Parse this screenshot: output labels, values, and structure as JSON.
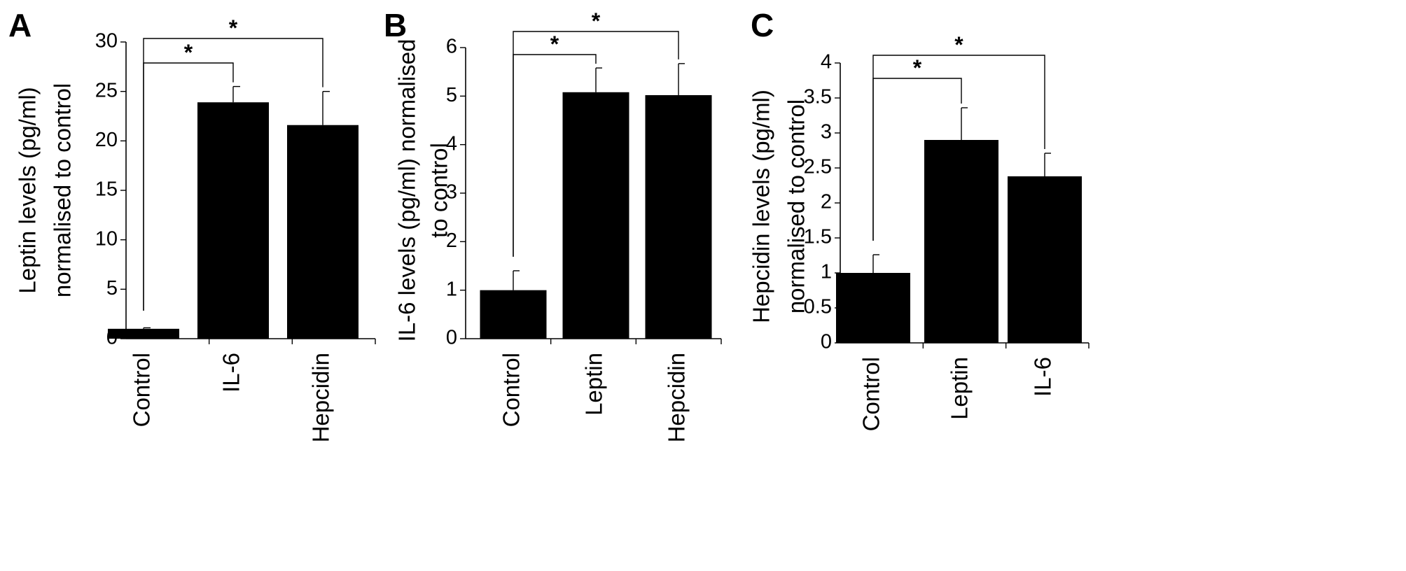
{
  "chart_data": [
    {
      "panel": "A",
      "type": "bar",
      "ylabel_lines": [
        "Leptin levels (pg/ml)",
        "normalised to control"
      ],
      "categories": [
        "Control",
        "IL-6",
        "Hepcidin"
      ],
      "values": [
        1.0,
        23.9,
        21.6
      ],
      "error": [
        0.1,
        1.6,
        3.4
      ],
      "ylim": [
        0,
        30
      ],
      "yticks": [
        0,
        5,
        10,
        15,
        20,
        25,
        30
      ],
      "ytick_labels": [
        "0",
        "5",
        "10",
        "15",
        "20",
        "25",
        "30"
      ],
      "significance": [
        {
          "from": "Control",
          "to": "IL-6",
          "label": "*"
        },
        {
          "from": "Control",
          "to": "Hepcidin",
          "label": "*"
        }
      ],
      "bar_color": "#000000",
      "grid": false
    },
    {
      "panel": "B",
      "type": "bar",
      "ylabel_lines": [
        "IL-6 levels (pg/ml) normalised",
        "to control"
      ],
      "categories": [
        "Control",
        "Leptin",
        "Hepcidin"
      ],
      "values": [
        1.0,
        5.08,
        5.02
      ],
      "error": [
        0.4,
        0.5,
        0.65
      ],
      "ylim": [
        0,
        6
      ],
      "yticks": [
        0,
        1,
        2,
        3,
        4,
        5,
        6
      ],
      "ytick_labels": [
        "0",
        "1",
        "2",
        "3",
        "4",
        "5",
        "6"
      ],
      "significance": [
        {
          "from": "Control",
          "to": "Leptin",
          "label": "*"
        },
        {
          "from": "Control",
          "to": "Hepcidin",
          "label": "*"
        }
      ],
      "bar_color": "#000000",
      "grid": false
    },
    {
      "panel": "C",
      "type": "bar",
      "ylabel_lines": [
        "Hepcidin levels (pg/ml)",
        "normalised to control"
      ],
      "categories": [
        "Control",
        "Leptin",
        "IL-6"
      ],
      "values": [
        1.0,
        2.9,
        2.38
      ],
      "error": [
        0.26,
        0.46,
        0.33
      ],
      "ylim": [
        0,
        4
      ],
      "yticks": [
        0,
        0.5,
        1,
        1.5,
        2,
        2.5,
        3,
        3.5,
        4
      ],
      "ytick_labels": [
        "0",
        "0.5",
        "1",
        "1.5",
        "2",
        "2.5",
        "3",
        "3.5",
        "4"
      ],
      "significance": [
        {
          "from": "Control",
          "to": "Leptin",
          "label": "*"
        },
        {
          "from": "Control",
          "to": "IL-6",
          "label": "*"
        }
      ],
      "bar_color": "#000000",
      "grid": false
    }
  ]
}
